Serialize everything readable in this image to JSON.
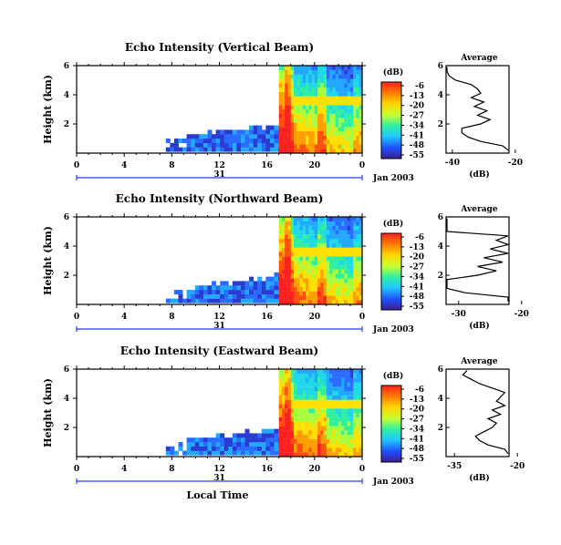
{
  "chart_data": [
    {
      "type": "heatmap",
      "title": "Echo Intensity (Vertical Beam)",
      "ylabel": "Height (km)",
      "ylim": [
        0,
        6
      ],
      "yticks": [
        "6",
        "4",
        "2"
      ],
      "xticks": [
        "0",
        "4",
        "8",
        "12",
        "16",
        "20",
        "0"
      ],
      "date_day": "31",
      "date_label": "Jan 2003",
      "colorbar": {
        "label": "(dB)",
        "ticks": [
          "-6",
          "-13",
          "-20",
          "-27",
          "-34",
          "-41",
          "-48",
          "-55"
        ]
      },
      "average": {
        "title": "Average",
        "xlabel": "(dB)",
        "xticks": [
          "-40",
          "-20"
        ],
        "yticks": [
          "6",
          "4",
          "2"
        ],
        "heights": [
          0.2,
          0.5,
          0.8,
          1.1,
          1.4,
          1.7,
          2.0,
          2.3,
          2.6,
          2.9,
          3.2,
          3.5,
          3.8,
          4.1,
          4.4,
          4.7,
          5.0,
          5.3,
          5.6,
          5.9
        ],
        "values": [
          -20,
          -24,
          -31,
          -35,
          -37,
          -37,
          -31,
          -28,
          -32,
          -29,
          -33,
          -30,
          -34,
          -31,
          -32,
          -34,
          -39,
          -41,
          -43,
          -42
        ]
      }
    },
    {
      "type": "heatmap",
      "title": "Echo Intensity (Northward Beam)",
      "ylabel": "Height (km)",
      "ylim": [
        0,
        6
      ],
      "yticks": [
        "6",
        "4",
        "2"
      ],
      "xticks": [
        "0",
        "4",
        "8",
        "12",
        "16",
        "20",
        "0"
      ],
      "date_day": "31",
      "date_label": "Jan 2003",
      "colorbar": {
        "label": "(dB)",
        "ticks": [
          "-6",
          "-13",
          "-20",
          "-27",
          "-34",
          "-41",
          "-48",
          "-55"
        ]
      },
      "average": {
        "title": "Average",
        "xlabel": "(dB)",
        "xticks": [
          "-30",
          "-20"
        ],
        "yticks": [
          "6",
          "4",
          "2"
        ],
        "heights": [
          0.2,
          0.5,
          0.8,
          1.1,
          1.4,
          1.7,
          2.0,
          2.3,
          2.6,
          2.9,
          3.2,
          3.5,
          3.8,
          4.1,
          4.4,
          4.7,
          5.0,
          5.3,
          5.6,
          5.9
        ],
        "values": [
          -18,
          -22,
          -29,
          -33,
          -34,
          -33,
          -27,
          -24,
          -27,
          -23,
          -26,
          -22,
          -25,
          -21,
          -24,
          -22,
          -33,
          -35,
          -36,
          -35
        ]
      }
    },
    {
      "type": "heatmap",
      "title": "Echo Intensity (Eastward Beam)",
      "ylabel": "Height (km)",
      "ylim": [
        0,
        6
      ],
      "yticks": [
        "6",
        "4",
        "2"
      ],
      "xticks": [
        "0",
        "4",
        "8",
        "12",
        "16",
        "20",
        "0"
      ],
      "date_day": "31",
      "date_label": "Jan 2003",
      "xlabel": "Local Time",
      "colorbar": {
        "label": "(dB)",
        "ticks": [
          "-6",
          "-13",
          "-20",
          "-27",
          "-34",
          "-41",
          "-48",
          "-55"
        ]
      },
      "average": {
        "title": "Average",
        "xlabel": "(dB)",
        "xticks": [
          "-35",
          "-20"
        ],
        "yticks": [
          "6",
          "4",
          "2"
        ],
        "heights": [
          0.2,
          0.5,
          0.8,
          1.1,
          1.4,
          1.7,
          2.0,
          2.3,
          2.6,
          2.9,
          3.2,
          3.5,
          3.8,
          4.1,
          4.4,
          4.7,
          5.0,
          5.3,
          5.6,
          5.9
        ],
        "values": [
          -20,
          -23,
          -27,
          -29,
          -30,
          -28,
          -26,
          -25,
          -27,
          -24,
          -26,
          -23,
          -25,
          -24,
          -23,
          -26,
          -29,
          -31,
          -33,
          -32
        ]
      }
    }
  ]
}
